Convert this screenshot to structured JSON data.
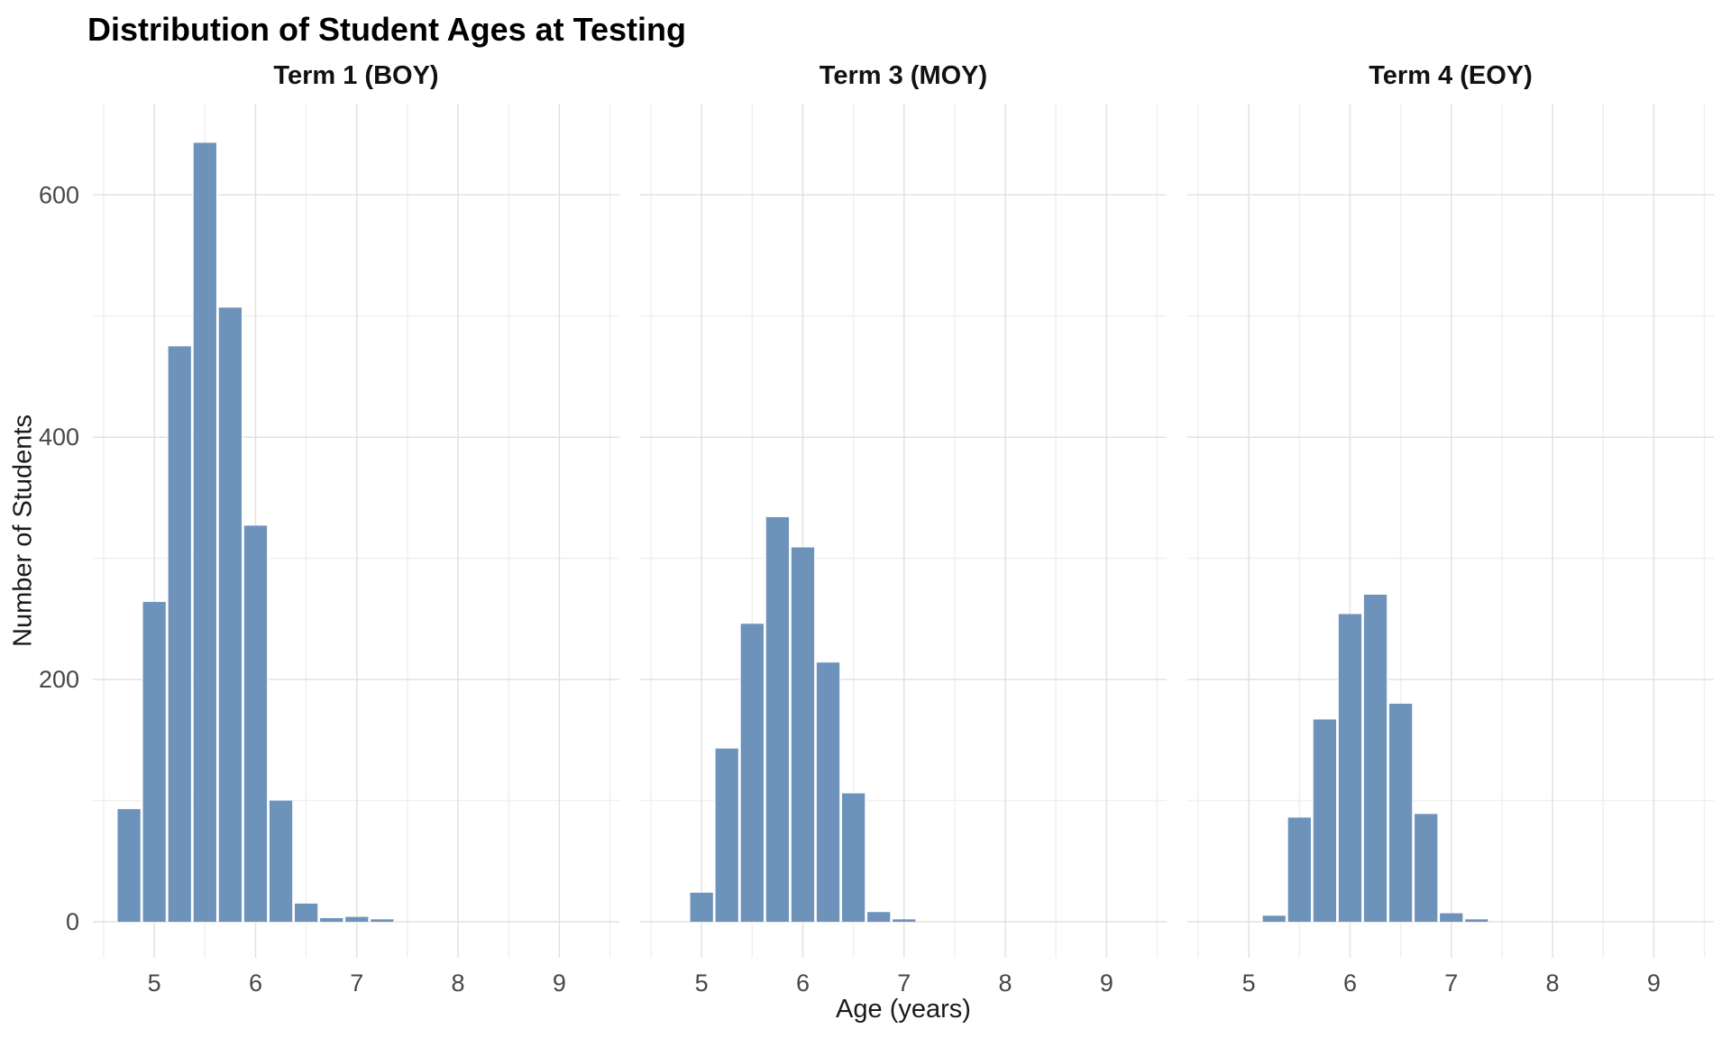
{
  "chart_data": {
    "type": "bar",
    "subtype": "faceted-histogram",
    "title": "Distribution of Student Ages at Testing",
    "xlabel": "Age (years)",
    "ylabel": "Number of Students",
    "legend_position": "none",
    "grid": "on",
    "bin_width": 0.25,
    "x_axis": {
      "ticks": [
        5,
        6,
        7,
        8,
        9
      ],
      "minor_gridlines": [
        4.5,
        5.5,
        6.5,
        7.5,
        8.5,
        9.5
      ],
      "range": [
        4.39,
        9.59
      ]
    },
    "y_axis": {
      "ticks": [
        0,
        200,
        400,
        600
      ],
      "minor_gridlines": [
        100,
        300,
        500
      ],
      "range": [
        0,
        680
      ]
    },
    "facets": [
      {
        "label": "Term 1 (BOY)",
        "bin_start": 4.625,
        "counts": [
          93,
          264,
          475,
          643,
          507,
          327,
          100,
          15,
          3,
          4,
          2
        ]
      },
      {
        "label": "Term 3 (MOY)",
        "bin_start": 4.875,
        "counts": [
          24,
          143,
          246,
          334,
          309,
          214,
          106,
          8,
          2
        ]
      },
      {
        "label": "Term 4 (EOY)",
        "bin_start": 5.125,
        "counts": [
          5,
          86,
          167,
          254,
          270,
          180,
          89,
          7,
          2
        ]
      }
    ],
    "colors": {
      "bar_fill": "rgba(88,131,177,0.87)",
      "bar_gap": "#ffffff",
      "grid_major": "#e2e2e2",
      "grid_minor": "#f0f0f0",
      "tick_text": "#474747",
      "axis_title_text": "#1a1a1a",
      "title_text": "#000000",
      "background": "#ffffff"
    }
  }
}
